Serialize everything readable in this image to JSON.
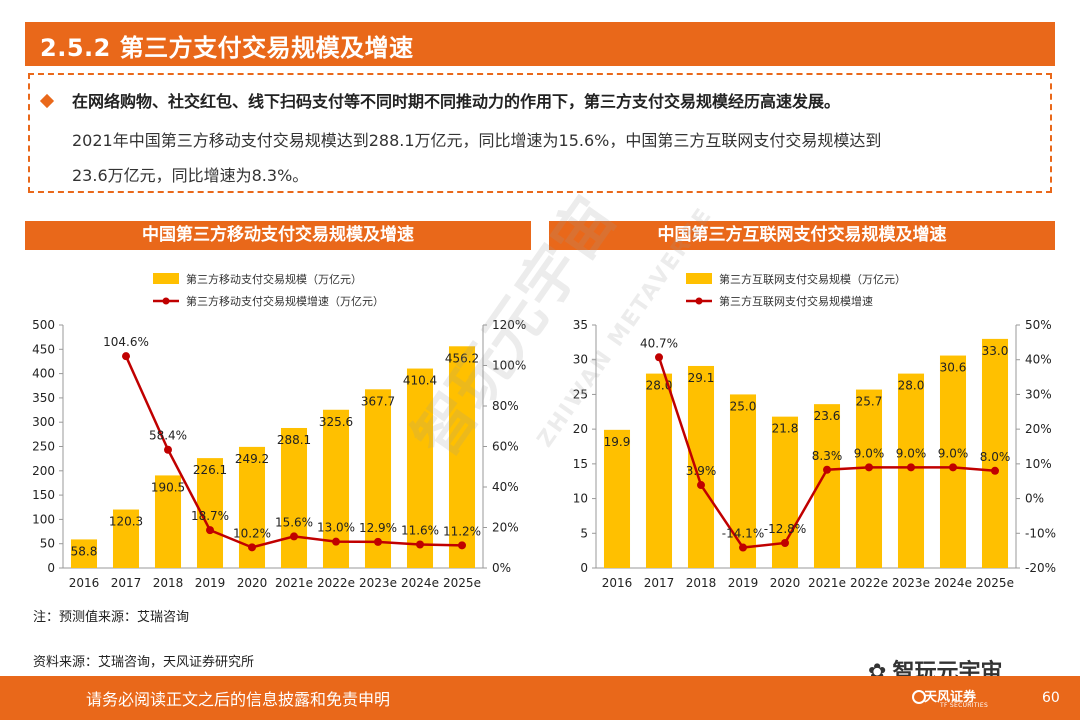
{
  "header": {
    "title": "2.5.2 第三方支付交易规模及增速"
  },
  "summary": {
    "line1": "在网络购物、社交红包、线下扫码支付等不同时期不同推动力的作用下，第三方支付交易规模经历高速发展。",
    "line2": "2021年中国第三方移动支付交易规模达到288.1万亿元，同比增速为15.6%，中国第三方互联网支付交易规模达到",
    "line3": "23.6万亿元，同比增速为8.3%。"
  },
  "watermark": {
    "main": "智玩元宇宙",
    "sub": "ZHIWAN METAVERSE"
  },
  "chart_data": [
    {
      "type": "bar",
      "title": "中国第三方移动支付交易规模及增速",
      "categories": [
        "2016",
        "2017",
        "2018",
        "2019",
        "2020",
        "2021e",
        "2022e",
        "2023e",
        "2024e",
        "2025e"
      ],
      "series": [
        {
          "name": "第三方移动支付交易规模（万亿元）",
          "kind": "bar",
          "axis": "left",
          "values": [
            58.8,
            120.3,
            190.5,
            226.1,
            249.2,
            288.1,
            325.6,
            367.7,
            410.4,
            456.2
          ],
          "labels": [
            "58.8",
            "120.3",
            "190.5",
            "226.1",
            "249.2",
            "288.1",
            "325.6",
            "367.7",
            "410.4",
            "456.2"
          ]
        },
        {
          "name": "第三方移动支付交易规模增速（万亿元）",
          "kind": "line",
          "axis": "right",
          "values": [
            null,
            104.6,
            58.4,
            18.7,
            10.2,
            15.6,
            13.0,
            12.9,
            11.6,
            11.2
          ],
          "labels": [
            null,
            "104.6%",
            "58.4%",
            "18.7%",
            "10.2%",
            "15.6%",
            "13.0%",
            "12.9%",
            "11.6%",
            "11.2%"
          ]
        }
      ],
      "y_left": {
        "min": 0,
        "max": 500,
        "step": 50,
        "ticks": [
          "0",
          "50",
          "100",
          "150",
          "200",
          "250",
          "300",
          "350",
          "400",
          "450",
          "500"
        ]
      },
      "y_right": {
        "min": 0,
        "max": 120,
        "step": 20,
        "ticks": [
          "0%",
          "20%",
          "40%",
          "60%",
          "80%",
          "100%",
          "120%"
        ]
      },
      "colors": {
        "bar": "#ffc000",
        "line": "#c00000"
      },
      "legend": "top"
    },
    {
      "type": "bar",
      "title": "中国第三方互联网支付交易规模及增速",
      "categories": [
        "2016",
        "2017",
        "2018",
        "2019",
        "2020",
        "2021e",
        "2022e",
        "2023e",
        "2024e",
        "2025e"
      ],
      "series": [
        {
          "name": "第三方互联网支付交易规模（万亿元）",
          "kind": "bar",
          "axis": "left",
          "values": [
            19.9,
            28.0,
            29.1,
            25.0,
            21.8,
            23.6,
            25.7,
            28.0,
            30.6,
            33.0
          ],
          "labels": [
            "19.9",
            "28.0",
            "29.1",
            "25.0",
            "21.8",
            "23.6",
            "25.7",
            "28.0",
            "30.6",
            "33.0"
          ]
        },
        {
          "name": "第三方互联网支付交易规模增速",
          "kind": "line",
          "axis": "right",
          "values": [
            null,
            40.7,
            3.9,
            -14.1,
            -12.8,
            8.3,
            9.0,
            9.0,
            9.0,
            8.0
          ],
          "labels": [
            null,
            "40.7%",
            "3.9%",
            "-14.1%",
            "-12.8%",
            "8.3%",
            "9.0%",
            "9.0%",
            "9.0%",
            "8.0%"
          ]
        }
      ],
      "y_left": {
        "min": 0,
        "max": 35,
        "step": 5,
        "ticks": [
          "0",
          "5",
          "10",
          "15",
          "20",
          "25",
          "30",
          "35"
        ]
      },
      "y_right": {
        "min": -20,
        "max": 50,
        "step": 10,
        "ticks": [
          "-20%",
          "-10%",
          "0%",
          "10%",
          "20%",
          "30%",
          "40%",
          "50%"
        ]
      },
      "colors": {
        "bar": "#ffc000",
        "line": "#c00000"
      },
      "legend": "top"
    }
  ],
  "notes": {
    "note": "注：预测值来源：艾瑞咨询",
    "source": "资料来源：艾瑞咨询，天风证券研究所"
  },
  "footer": {
    "disclaimer": "请务必阅读正文之后的信息披露和免责申明",
    "wechat_name": "智玩元宇宙",
    "logo_name": "天风证券",
    "logo_sub": "TF SECURITIES",
    "page": "60"
  }
}
